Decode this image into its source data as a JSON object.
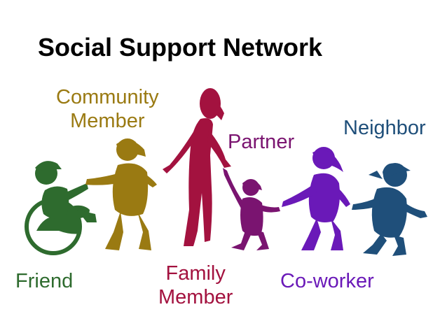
{
  "title": "Social Support Network",
  "people": [
    {
      "id": "friend",
      "lines": [
        "Friend"
      ],
      "color": "#2e6b2e"
    },
    {
      "id": "community-member",
      "lines": [
        "Community",
        "Member"
      ],
      "color": "#9a7a12"
    },
    {
      "id": "family-member",
      "lines": [
        "Family",
        "Member"
      ],
      "color": "#a3123f"
    },
    {
      "id": "partner",
      "lines": [
        "Partner"
      ],
      "color": "#7a1470"
    },
    {
      "id": "co-worker",
      "lines": [
        "Co-worker"
      ],
      "color": "#6a19b8"
    },
    {
      "id": "neighbor",
      "lines": [
        "Neighbor"
      ],
      "color": "#1f4f7a"
    }
  ]
}
